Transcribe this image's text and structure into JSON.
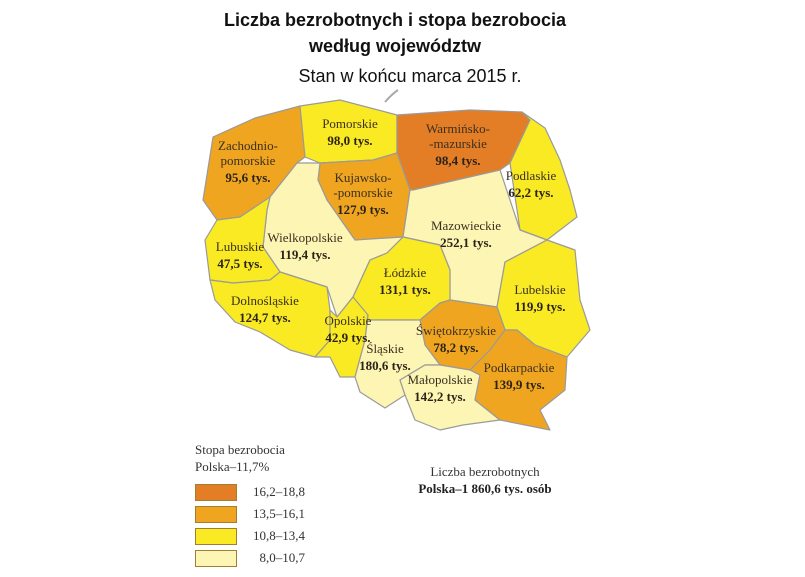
{
  "title_line1": "Liczba bezrobotnych i stopa bezrobocia",
  "title_line2": "według województw",
  "subtitle": "Stan w końcu marca 2015 r.",
  "colors": {
    "16.2-18.8": "#e37d26",
    "13.5-16.1": "#f0a520",
    "10.8-13.4": "#f9ea24",
    "8.0-10.7": "#fdf5b3"
  },
  "regions": [
    {
      "id": "zachodniopomorskie",
      "name": [
        "Zachodnio-",
        "pomorskie"
      ],
      "value": "95,6 tys.",
      "class": "13.5-16.1"
    },
    {
      "id": "pomorskie",
      "name": [
        "Pomorskie"
      ],
      "value": "98,0 tys.",
      "class": "10.8-13.4"
    },
    {
      "id": "warminsko-mazurskie",
      "name": [
        "Warmińsko-",
        "-mazurskie"
      ],
      "value": "98,4 tys.",
      "class": "16.2-18.8"
    },
    {
      "id": "podlaskie",
      "name": [
        "Podlaskie"
      ],
      "value": "62,2 tys.",
      "class": "10.8-13.4"
    },
    {
      "id": "kujawsko-pomorskie",
      "name": [
        "Kujawsko-",
        "-pomorskie"
      ],
      "value": "127,9 tys.",
      "class": "13.5-16.1"
    },
    {
      "id": "wielkopolskie",
      "name": [
        "Wielkopolskie"
      ],
      "value": "119,4 tys.",
      "class": "8.0-10.7"
    },
    {
      "id": "lubuskie",
      "name": [
        "Lubuskie"
      ],
      "value": "47,5 tys.",
      "class": "10.8-13.4"
    },
    {
      "id": "mazowieckie",
      "name": [
        "Mazowieckie"
      ],
      "value": "252,1 tys.",
      "class": "8.0-10.7"
    },
    {
      "id": "lodzkie",
      "name": [
        "Łódzkie"
      ],
      "value": "131,1 tys.",
      "class": "10.8-13.4"
    },
    {
      "id": "lubelskie",
      "name": [
        "Lubelskie"
      ],
      "value": "119,9 tys.",
      "class": "10.8-13.4"
    },
    {
      "id": "dolnoslaskie",
      "name": [
        "Dolnośląskie"
      ],
      "value": "124,7 tys.",
      "class": "10.8-13.4"
    },
    {
      "id": "opolskie",
      "name": [
        "Opolskie"
      ],
      "value": "42,9 tys.",
      "class": "10.8-13.4"
    },
    {
      "id": "swietokrzyskie",
      "name": [
        "Świętokrzyskie"
      ],
      "value": "78,2 tys.",
      "class": "13.5-16.1"
    },
    {
      "id": "slaskie",
      "name": [
        "Śląskie"
      ],
      "value": "180,6 tys.",
      "class": "8.0-10.7"
    },
    {
      "id": "malopolskie",
      "name": [
        "Małopolskie"
      ],
      "value": "142,2 tys.",
      "class": "8.0-10.7"
    },
    {
      "id": "podkarpackie",
      "name": [
        "Podkarpackie"
      ],
      "value": "139,9 tys.",
      "class": "13.5-16.1"
    }
  ],
  "legend": {
    "title": "Stopa bezrobocia",
    "national": "Polska–11,7%",
    "items": [
      {
        "label": "16,2–18,8",
        "class": "16.2-18.8"
      },
      {
        "label": "13,5–16,1",
        "class": "13.5-16.1"
      },
      {
        "label": "10,8–13,4",
        "class": "10.8-13.4"
      },
      {
        "label": "8,0–10,7",
        "class": "8.0-10.7"
      }
    ]
  },
  "total": {
    "label": "Liczba bezrobotnych",
    "value": "Polska–1 860,6 tys. osób"
  }
}
